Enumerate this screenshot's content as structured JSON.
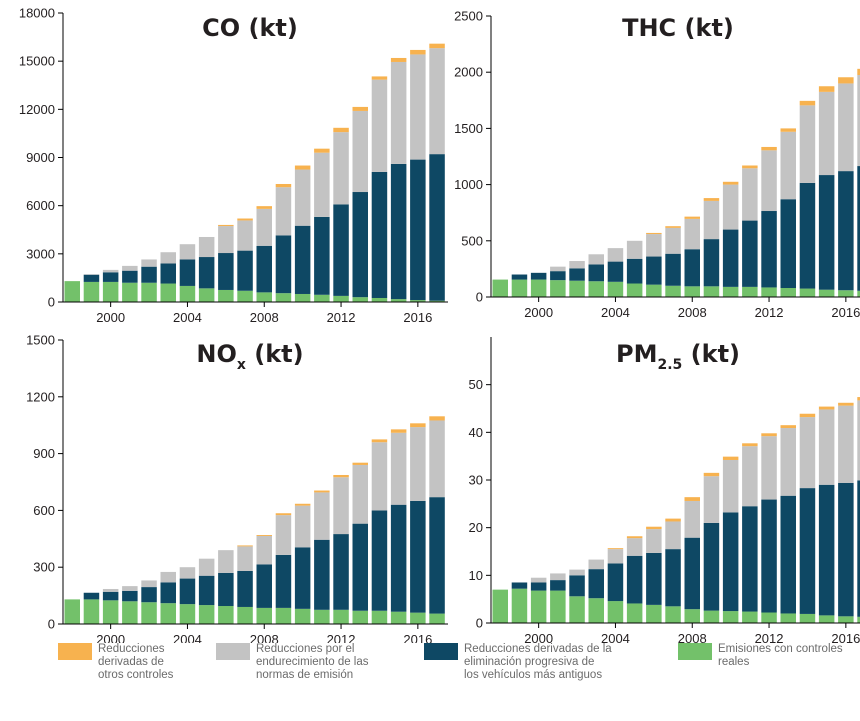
{
  "chart_data": [
    {
      "type": "bar",
      "stacked": true,
      "title": "CO (kt)",
      "x": [
        1998,
        1999,
        2000,
        2001,
        2002,
        2003,
        2004,
        2005,
        2006,
        2007,
        2008,
        2009,
        2010,
        2011,
        2012,
        2013,
        2014,
        2015,
        2016,
        2017
      ],
      "xticks": [
        "2000",
        "2004",
        "2008",
        "2012",
        "2016"
      ],
      "ylim": [
        0,
        18000
      ],
      "yticks": [
        "0",
        "3000",
        "6000",
        "9000",
        "12000",
        "15000",
        "18000"
      ],
      "series": [
        {
          "name": "Emisiones con controles reales",
          "values": [
            1300,
            1250,
            1250,
            1200,
            1200,
            1150,
            1000,
            850,
            750,
            700,
            600,
            550,
            500,
            450,
            380,
            300,
            250,
            180,
            120,
            80
          ]
        },
        {
          "name": "Reducciones derivadas de la eliminación progresiva de los vehículos más antiguos",
          "values": [
            0,
            450,
            600,
            750,
            1000,
            1250,
            1650,
            1950,
            2300,
            2500,
            2900,
            3600,
            4250,
            4850,
            5700,
            6550,
            7850,
            8420,
            8750,
            9130
          ]
        },
        {
          "name": "Reducciones por el endurecimiento de las normas de emisión",
          "values": [
            0,
            30,
            150,
            300,
            450,
            700,
            950,
            1250,
            1680,
            1880,
            2300,
            3000,
            3500,
            4000,
            4500,
            5050,
            5750,
            6350,
            6550,
            6600
          ]
        },
        {
          "name": "Reducciones derivadas de otros controles",
          "values": [
            0,
            0,
            0,
            0,
            0,
            0,
            0,
            0,
            70,
            120,
            170,
            200,
            250,
            250,
            270,
            250,
            200,
            250,
            280,
            280
          ]
        }
      ]
    },
    {
      "type": "bar",
      "stacked": true,
      "title": "THC (kt)",
      "x": [
        1998,
        1999,
        2000,
        2001,
        2002,
        2003,
        2004,
        2005,
        2006,
        2007,
        2008,
        2009,
        2010,
        2011,
        2012,
        2013,
        2014,
        2015,
        2016,
        2017
      ],
      "xticks": [
        "2000",
        "2004",
        "2008",
        "2012",
        "2016"
      ],
      "ylim": [
        0,
        2500
      ],
      "yticks": [
        "0",
        "500",
        "1000",
        "1500",
        "2000",
        "2500"
      ],
      "series": [
        {
          "name": "Emisiones con controles reales",
          "values": [
            155,
            155,
            155,
            150,
            145,
            140,
            135,
            120,
            110,
            100,
            95,
            95,
            90,
            90,
            85,
            80,
            75,
            65,
            60,
            55
          ]
        },
        {
          "name": "Reducciones derivadas de la eliminación progresiva de los vehículos más antiguos",
          "values": [
            0,
            45,
            60,
            80,
            110,
            150,
            180,
            220,
            250,
            285,
            330,
            420,
            510,
            590,
            680,
            790,
            940,
            1020,
            1060,
            1110
          ]
        },
        {
          "name": "Reducciones por el endurecimiento de las normas de emisión",
          "values": [
            0,
            0,
            0,
            40,
            65,
            90,
            120,
            160,
            200,
            230,
            270,
            340,
            400,
            465,
            540,
            600,
            690,
            740,
            780,
            810
          ]
        },
        {
          "name": "Reducciones derivadas de otros controles",
          "values": [
            0,
            0,
            0,
            0,
            0,
            0,
            0,
            0,
            10,
            15,
            20,
            25,
            25,
            25,
            30,
            30,
            40,
            50,
            55,
            55
          ]
        }
      ]
    },
    {
      "type": "bar",
      "stacked": true,
      "title": "NOx (kt)",
      "title_main": "NO",
      "title_sub": "x",
      "title_rest": " (kt)",
      "x": [
        1998,
        1999,
        2000,
        2001,
        2002,
        2003,
        2004,
        2005,
        2006,
        2007,
        2008,
        2009,
        2010,
        2011,
        2012,
        2013,
        2014,
        2015,
        2016,
        2017
      ],
      "xticks": [
        "2000",
        "2004",
        "2008",
        "2012",
        "2016"
      ],
      "ylim": [
        0,
        1500
      ],
      "yticks": [
        "0",
        "300",
        "600",
        "900",
        "1200",
        "1500"
      ],
      "series": [
        {
          "name": "Emisiones con controles reales",
          "values": [
            130,
            130,
            125,
            120,
            115,
            110,
            105,
            100,
            95,
            90,
            85,
            85,
            80,
            75,
            75,
            70,
            70,
            65,
            60,
            55
          ]
        },
        {
          "name": "Reducciones derivadas de la eliminación progresiva de los vehículos más antiguos",
          "values": [
            0,
            35,
            45,
            55,
            80,
            110,
            135,
            155,
            175,
            190,
            230,
            280,
            325,
            370,
            400,
            460,
            530,
            565,
            590,
            615
          ]
        },
        {
          "name": "Reducciones por el endurecimiento de las normas de emisión",
          "values": [
            0,
            0,
            15,
            25,
            35,
            55,
            60,
            90,
            120,
            130,
            150,
            210,
            220,
            250,
            300,
            310,
            360,
            380,
            390,
            405
          ]
        },
        {
          "name": "Reducciones derivadas de otros controles",
          "values": [
            0,
            0,
            0,
            0,
            0,
            0,
            0,
            0,
            0,
            5,
            5,
            10,
            10,
            10,
            12,
            12,
            15,
            18,
            20,
            22
          ]
        }
      ]
    },
    {
      "type": "bar",
      "stacked": true,
      "title": "PM2.5 (kt)",
      "title_main": "PM",
      "title_sub": "2.5",
      "title_rest": " (kt)",
      "x": [
        1998,
        1999,
        2000,
        2001,
        2002,
        2003,
        2004,
        2005,
        2006,
        2007,
        2008,
        2009,
        2010,
        2011,
        2012,
        2013,
        2014,
        2015,
        2016,
        2017
      ],
      "xticks": [
        "2000",
        "2004",
        "2008",
        "2012",
        "2016"
      ],
      "ylim": [
        0,
        60
      ],
      "yticks": [
        "0",
        "10",
        "20",
        "30",
        "40",
        "50"
      ],
      "series": [
        {
          "name": "Emisiones con controles reales",
          "values": [
            7,
            7.2,
            6.8,
            6.8,
            5.6,
            5.2,
            4.6,
            4.1,
            3.8,
            3.5,
            2.9,
            2.6,
            2.5,
            2.4,
            2.2,
            2,
            1.9,
            1.6,
            1.4,
            1.3
          ]
        },
        {
          "name": "Reducciones derivadas de la eliminación progresiva de los vehículos más antiguos",
          "values": [
            0,
            1.3,
            1.7,
            2.2,
            4.4,
            6.1,
            7.9,
            10,
            10.9,
            12,
            15,
            18.4,
            20.7,
            22.1,
            23.7,
            24.7,
            26.4,
            27.4,
            28,
            28.6
          ]
        },
        {
          "name": "Reducciones por el endurecimiento de las normas de emisión",
          "values": [
            0,
            0,
            1,
            1.4,
            1.2,
            2,
            3,
            3.7,
            5,
            5.8,
            7.7,
            9.8,
            11,
            12.6,
            13.3,
            14.2,
            14.9,
            15.8,
            16.2,
            16.8
          ]
        },
        {
          "name": "Reducciones derivadas de otros controles",
          "values": [
            0,
            0,
            0,
            0,
            0,
            0,
            0.2,
            0.4,
            0.5,
            0.6,
            0.8,
            0.7,
            0.7,
            0.6,
            0.6,
            0.6,
            0.7,
            0.6,
            0.6,
            0.7
          ]
        }
      ]
    }
  ],
  "colors": {
    "otros": "#f7b24f",
    "normas": "#c3c3c3",
    "eliminacion": "#0e4864",
    "emisiones": "#73c16a",
    "axis": "#000000",
    "title": "#231f20"
  },
  "legend": [
    {
      "key": "otros",
      "label": "Reducciones\nderivadas de\notros controles"
    },
    {
      "key": "normas",
      "label": "Reducciones por el\nendurecimiento de las\nnormas de emisión"
    },
    {
      "key": "eliminacion",
      "label": "Reducciones derivadas de la\neliminación progresiva de\nlos vehículos más antiguos"
    },
    {
      "key": "emisiones",
      "label": "Emisiones con controles\nreales"
    }
  ]
}
